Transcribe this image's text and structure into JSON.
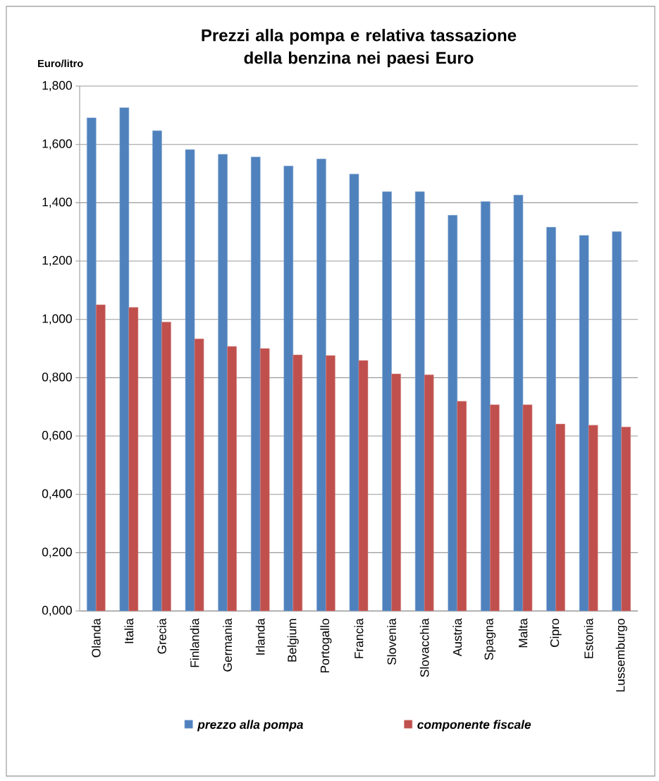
{
  "chart_data": {
    "type": "bar",
    "title": "Prezzi alla pompa e relativa tassazione della benzina nei paesi Euro",
    "ylabel": "Euro/litro",
    "categories": [
      "Olanda",
      "Italia",
      "Grecia",
      "Finlandia",
      "Germania",
      "Irlanda",
      "Belgium",
      "Portogallo",
      "Francia",
      "Slovenia",
      "Slovacchia",
      "Austria",
      "Spagna",
      "Malta",
      "Cipro",
      "Estonia",
      "Lussemburgo"
    ],
    "series": [
      {
        "name": "prezzo alla pompa",
        "color": "#4f81bd",
        "values": [
          1.691,
          1.726,
          1.647,
          1.582,
          1.566,
          1.557,
          1.526,
          1.55,
          1.498,
          1.438,
          1.438,
          1.357,
          1.404,
          1.426,
          1.316,
          1.288,
          1.301
        ]
      },
      {
        "name": "componente fiscale",
        "color": "#c0504d",
        "values": [
          1.05,
          1.041,
          0.991,
          0.933,
          0.907,
          0.9,
          0.878,
          0.876,
          0.859,
          0.813,
          0.81,
          0.719,
          0.707,
          0.707,
          0.641,
          0.637,
          0.631
        ]
      }
    ],
    "ylim": [
      0,
      1.8
    ],
    "yticks": [
      {
        "value": 0,
        "label": "0,000"
      },
      {
        "value": 0.2,
        "label": "0,200"
      },
      {
        "value": 0.4,
        "label": "0,400"
      },
      {
        "value": 0.6,
        "label": "0,600"
      },
      {
        "value": 0.8,
        "label": "0,800"
      },
      {
        "value": 1.0,
        "label": "1,000"
      },
      {
        "value": 1.2,
        "label": "1,200"
      },
      {
        "value": 1.4,
        "label": "1,400"
      },
      {
        "value": 1.6,
        "label": "1,600"
      },
      {
        "value": 1.8,
        "label": "1,800"
      }
    ],
    "grid": "y",
    "legend": "bottom"
  }
}
